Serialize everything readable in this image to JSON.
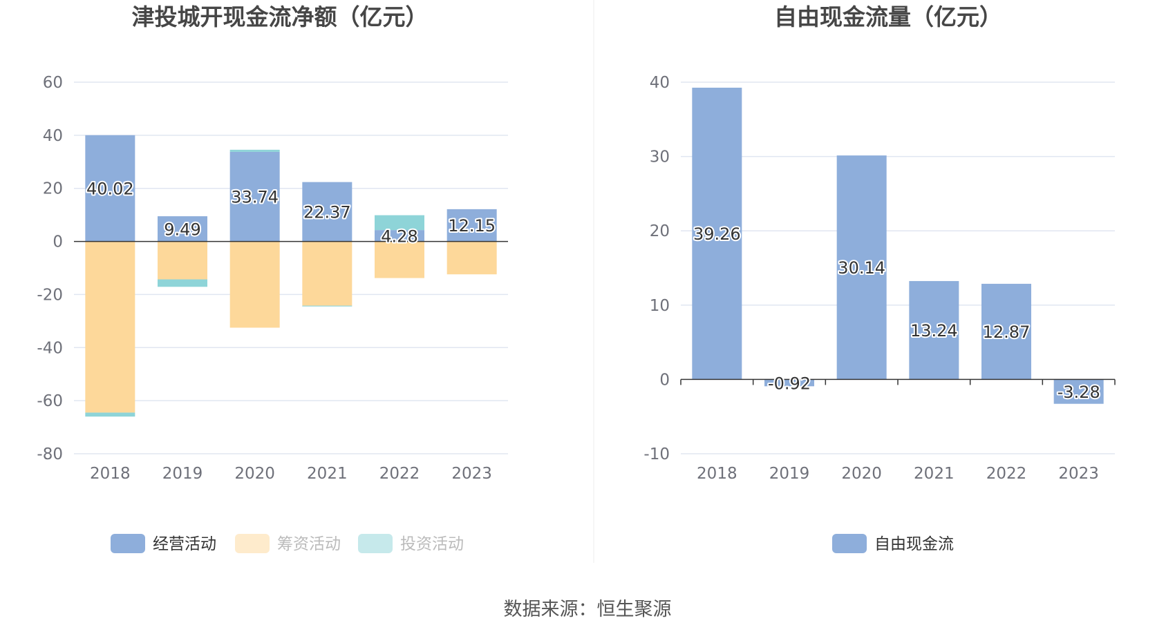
{
  "source_label": "数据来源：恒生聚源",
  "colors": {
    "operating": "#8eaedb",
    "financing": "#fdd89a",
    "investing": "#8ed4d8",
    "grid": "#e0e6f1",
    "axis": "#333333",
    "divider": "#eeeeee"
  },
  "chart_data": [
    {
      "type": "bar",
      "stacked": true,
      "title": "津投城开现金流净额（亿元）",
      "categories": [
        "2018",
        "2019",
        "2020",
        "2021",
        "2022",
        "2023"
      ],
      "ylim": [
        -80,
        60
      ],
      "yticks": [
        "60",
        "40",
        "20",
        "0",
        "-20",
        "-40",
        "-60",
        "-80"
      ],
      "series": [
        {
          "name": "经营活动",
          "key": "operating",
          "values": [
            40.02,
            9.49,
            33.74,
            22.37,
            4.28,
            12.15
          ],
          "labels": [
            "40.02",
            "9.49",
            "33.74",
            "22.37",
            "4.28",
            "12.15"
          ]
        },
        {
          "name": "筹资活动",
          "key": "financing",
          "values": [
            -64.5,
            -14.3,
            -32.5,
            -24.2,
            -13.8,
            -12.4
          ]
        },
        {
          "name": "投资活动",
          "key": "investing",
          "values": [
            -1.5,
            -2.8,
            0.8,
            -0.3,
            5.6,
            0.0
          ]
        }
      ],
      "legend": [
        {
          "name": "经营活动",
          "key": "operating",
          "active": true
        },
        {
          "name": "筹资活动",
          "key": "financing",
          "active": false
        },
        {
          "name": "投资活动",
          "key": "investing",
          "active": false
        }
      ]
    },
    {
      "type": "bar",
      "title": "自由现金流量（亿元）",
      "categories": [
        "2018",
        "2019",
        "2020",
        "2021",
        "2022",
        "2023"
      ],
      "ylim": [
        -10,
        40
      ],
      "yticks": [
        "40",
        "30",
        "20",
        "10",
        "0",
        "-10"
      ],
      "series": [
        {
          "name": "自由现金流",
          "key": "operating",
          "values": [
            39.26,
            -0.92,
            30.14,
            13.24,
            12.87,
            -3.28
          ],
          "labels": [
            "39.26",
            "-0.92",
            "30.14",
            "13.24",
            "12.87",
            "-3.28"
          ]
        }
      ],
      "legend": [
        {
          "name": "自由现金流",
          "key": "operating",
          "active": true
        }
      ]
    }
  ]
}
